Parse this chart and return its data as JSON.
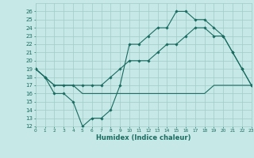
{
  "xlabel": "Humidex (Indice chaleur)",
  "bg_color": "#c6e8e6",
  "grid_color": "#a0ccc8",
  "line_color": "#1a6b60",
  "xlim": [
    0,
    23
  ],
  "ylim": [
    12,
    27
  ],
  "xticks": [
    0,
    1,
    2,
    3,
    4,
    5,
    6,
    7,
    8,
    9,
    10,
    11,
    12,
    13,
    14,
    15,
    16,
    17,
    18,
    19,
    20,
    21,
    22,
    23
  ],
  "yticks": [
    12,
    13,
    14,
    15,
    16,
    17,
    18,
    19,
    20,
    21,
    22,
    23,
    24,
    25,
    26
  ],
  "line1_x": [
    0,
    1,
    2,
    3,
    4,
    5,
    6,
    7,
    8,
    9,
    10,
    11,
    12,
    13,
    14,
    15,
    16,
    17,
    18,
    19,
    20,
    21,
    22,
    23
  ],
  "line1_y": [
    19,
    18,
    16,
    16,
    15,
    12,
    13,
    13,
    14,
    17,
    22,
    22,
    23,
    24,
    24,
    26,
    26,
    25,
    25,
    24,
    23,
    21,
    19,
    17
  ],
  "line2_x": [
    0,
    1,
    2,
    3,
    4,
    5,
    6,
    7,
    8,
    9,
    10,
    11,
    12,
    13,
    14,
    15,
    16,
    17,
    18,
    19,
    20,
    21,
    22,
    23
  ],
  "line2_y": [
    19,
    18,
    17,
    17,
    17,
    16,
    16,
    16,
    16,
    16,
    16,
    16,
    16,
    16,
    16,
    16,
    16,
    16,
    16,
    17,
    17,
    17,
    17,
    17
  ],
  "line3_x": [
    0,
    1,
    2,
    3,
    4,
    5,
    6,
    7,
    8,
    9,
    10,
    11,
    12,
    13,
    14,
    15,
    16,
    17,
    18,
    19,
    20,
    21,
    22,
    23
  ],
  "line3_y": [
    19,
    18,
    17,
    17,
    17,
    17,
    17,
    17,
    18,
    19,
    20,
    20,
    20,
    21,
    22,
    22,
    23,
    24,
    24,
    23,
    23,
    21,
    19,
    17
  ]
}
